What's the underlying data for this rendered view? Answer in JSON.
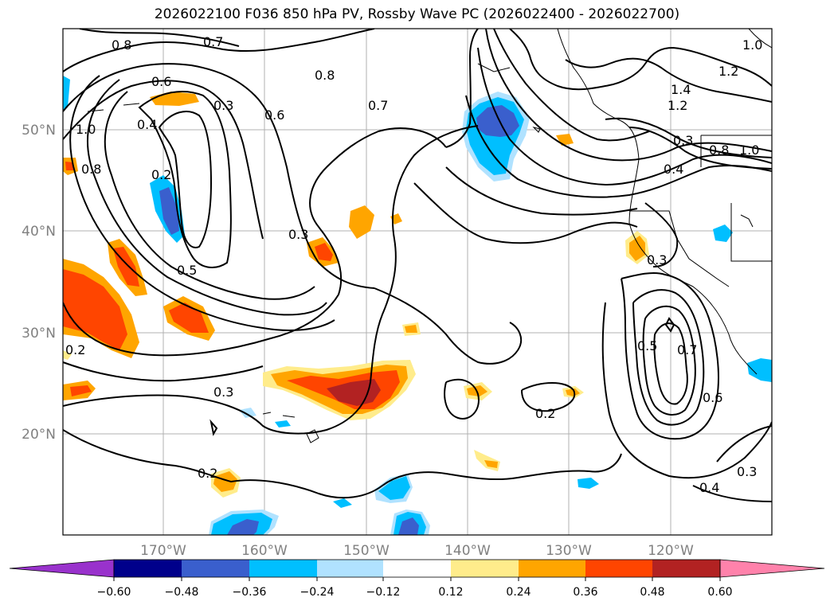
{
  "title": "2026022100 F036 850 hPa PV, Rossby Wave PC (2026022400 - 2026022700)",
  "lat_labels": [
    "50°N",
    "40°N",
    "30°N",
    "20°N"
  ],
  "lon_labels": [
    "170°W",
    "160°W",
    "150°W",
    "140°W",
    "130°W",
    "120°W"
  ],
  "colorbar": {
    "ticks": [
      "−0.60",
      "−0.48",
      "−0.36",
      "−0.24",
      "−0.12",
      "0.12",
      "0.24",
      "0.36",
      "0.48",
      "0.60"
    ],
    "colors": [
      "#9932cc",
      "#00008b",
      "#3a5fcd",
      "#00bfff",
      "#b0e2ff",
      "#ffffff",
      "#ffec8b",
      "#ffa500",
      "#ff4500",
      "#b22222",
      "#ff82ab"
    ]
  },
  "contour_labels": [
    "0.8",
    "0.7",
    "0.6",
    "0.3",
    "0.6",
    "0.8",
    "0.7",
    "1.0",
    "0.4",
    "0.8",
    "0.2",
    "0.3",
    "0.5",
    "0.2",
    "0.3",
    "0.2",
    "0.2",
    "1.0",
    "1.2",
    "1.4",
    "1.2",
    "0.3",
    "0.8",
    "1.0",
    "0.4",
    "0.3",
    "0.5",
    "0.7",
    "0.6",
    "0.4",
    "0.3"
  ]
}
